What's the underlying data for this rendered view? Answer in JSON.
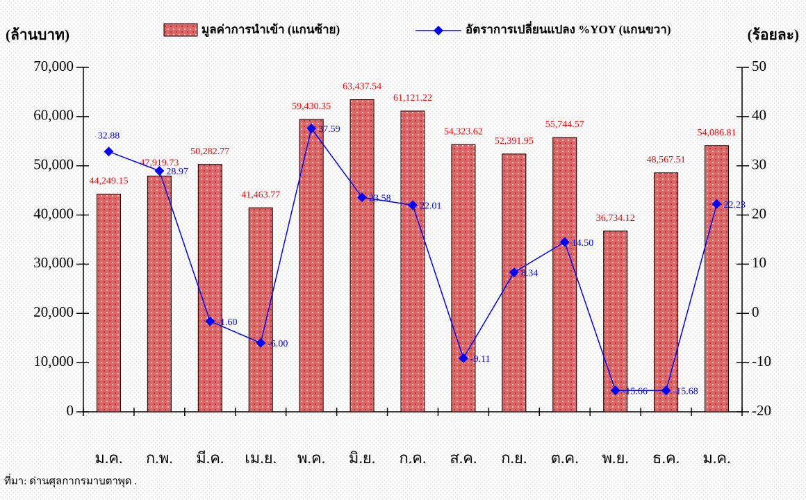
{
  "chart_data": {
    "type": "bar_line",
    "y_label": "(ล้านบาท)",
    "y2_label": "(ร้อยละ)",
    "source": "ที่มา: ด่านศุลกากรมาบตาพุด  .",
    "categories": [
      "ม.ค.",
      "ก.พ.",
      "มี.ค.",
      "เม.ย.",
      "พ.ค.",
      "มิ.ย.",
      "ก.ค.",
      "ส.ค.",
      "ก.ย.",
      "ต.ค.",
      "พ.ย.",
      "ธ.ค.",
      "ม.ค."
    ],
    "series": [
      {
        "name": "มูลค่าการนำเข้า (แกนซ้าย)",
        "type": "bar",
        "color": "#e06666",
        "label_color": "#ff0000",
        "values": [
          44249.15,
          47919.73,
          50282.77,
          41463.77,
          59430.35,
          63437.54,
          61121.22,
          54323.62,
          52391.95,
          55744.57,
          36734.12,
          48567.51,
          54086.81
        ],
        "value_labels": [
          "44,249.15",
          "47,919.73",
          "50,282.77",
          "41,463.77",
          "59,430.35",
          "63,437.54",
          "61,121.22",
          "54,323.62",
          "52,391.95",
          "55,744.57",
          "36,734.12",
          "48,567.51",
          "54,086.81"
        ]
      },
      {
        "name": "อัตราการเปลี่ยนแปลง %YOY (แกนขวา)",
        "type": "line",
        "axis": "y2",
        "color": "#0000ff",
        "values": [
          32.88,
          28.97,
          -1.6,
          -6.0,
          37.59,
          23.58,
          22.01,
          -9.11,
          8.34,
          14.5,
          -15.66,
          -15.68,
          22.23
        ],
        "value_labels": [
          "32.88",
          "28.97",
          "-1.60",
          "-6.00",
          "37.59",
          "23.58",
          "22.01",
          "-9.11",
          "8.34",
          "14.50",
          "-15.66",
          "-15.68",
          "22.23"
        ]
      }
    ],
    "ylim": [
      0,
      70000
    ],
    "yticks": [
      0,
      {
        "value": 10000,
        "label": "10,000"
      },
      {
        "value": 20000,
        "label": "20,000"
      },
      {
        "value": 30000,
        "label": "30,000"
      },
      {
        "value": 40000,
        "label": "40,000"
      },
      {
        "value": 50000,
        "label": "50,000"
      },
      {
        "value": 60000,
        "label": "60,000"
      },
      {
        "value": 70000,
        "label": "70,000"
      }
    ],
    "y2lim": [
      -20,
      50
    ],
    "y2ticks": [
      -20,
      -10,
      0,
      10,
      20,
      30,
      40,
      50
    ],
    "legend": "top"
  }
}
